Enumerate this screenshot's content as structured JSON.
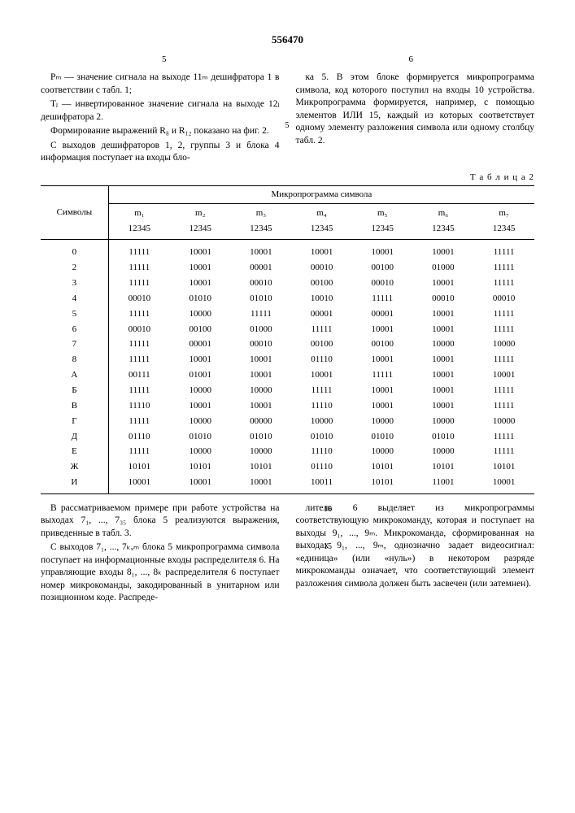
{
  "doc_number": "556470",
  "page_left": "5",
  "page_right": "6",
  "body_top_left": [
    "Рₘ — значение сигнала на выходе 11ₘ дешифратора 1 в соответствии с табл. 1;",
    "Tⱼ — инвертированное значение сигнала на выходе 12ⱼ дешифратора 2.",
    "Формирование выражений R₈ и R₁₂ показано на фиг. 2.",
    "С выходов дешифраторов 1, 2, группы 3 и блока 4 информация поступает на входы бло-"
  ],
  "body_top_right": [
    "ка 5. В этом блоке формируется микропрограмма символа, код которого поступил на входы 10 устройства. Микропрограмма формируется, например, с помощью элементов ИЛИ 15, каждый из которых соответствует одному элементу разложения символа или одному столбцу табл. 2."
  ],
  "line_marker_top": "5",
  "table_label": "Т а б л и ц а   2",
  "table": {
    "super_header": "Микропрограмма символа",
    "sym_header": "Символы",
    "col_headers": [
      "m₁",
      "m₂",
      "m₃",
      "m₄",
      "m₅",
      "m₆",
      "m₇"
    ],
    "col_sub": [
      "12345",
      "12345",
      "12345",
      "12345",
      "12345",
      "12345",
      "12345"
    ],
    "rows": [
      [
        "0",
        "11111",
        "10001",
        "10001",
        "10001",
        "10001",
        "10001",
        "11111"
      ],
      [
        "2",
        "11111",
        "10001",
        "00001",
        "00010",
        "00100",
        "01000",
        "11111"
      ],
      [
        "3",
        "11111",
        "10001",
        "00010",
        "00100",
        "00010",
        "10001",
        "11111"
      ],
      [
        "4",
        "00010",
        "01010",
        "01010",
        "10010",
        "11111",
        "00010",
        "00010"
      ],
      [
        "5",
        "11111",
        "10000",
        "11111",
        "00001",
        "00001",
        "10001",
        "11111"
      ],
      [
        "6",
        "00010",
        "00100",
        "01000",
        "11111",
        "10001",
        "10001",
        "11111"
      ],
      [
        "7",
        "11111",
        "00001",
        "00010",
        "00100",
        "00100",
        "10000",
        "10000"
      ],
      [
        "8",
        "11111",
        "10001",
        "10001",
        "01110",
        "10001",
        "10001",
        "11111"
      ],
      [
        "А",
        "00111",
        "01001",
        "10001",
        "10001",
        "11111",
        "10001",
        "10001"
      ],
      [
        "Б",
        "11111",
        "10000",
        "10000",
        "11111",
        "10001",
        "10001",
        "11111"
      ],
      [
        "В",
        "11110",
        "10001",
        "10001",
        "11110",
        "10001",
        "10001",
        "11111"
      ],
      [
        "Г",
        "11111",
        "10000",
        "00000",
        "10000",
        "10000",
        "10000",
        "10000"
      ],
      [
        "Д",
        "01110",
        "01010",
        "01010",
        "01010",
        "01010",
        "01010",
        "11111"
      ],
      [
        "Е",
        "11111",
        "10000",
        "10000",
        "11110",
        "10000",
        "10000",
        "11111"
      ],
      [
        "Ж",
        "10101",
        "10101",
        "10101",
        "01110",
        "10101",
        "10101",
        "10101"
      ],
      [
        "И",
        "10001",
        "10001",
        "10001",
        "10011",
        "10101",
        "11001",
        "10001"
      ]
    ]
  },
  "body_bottom_left": [
    "В рассматриваемом примере при работе устройства на выходах 7₁, ..., 7₃₅ блока 5 реализуются выражения, приведенные в табл. 3.",
    "С выходов 7₁, ..., 7ₖₓₘ блока 5 микропрограмма символа поступает на информационные входы распределителя 6. На управляющие входы 8₁, ..., 8ₖ распределителя 6 поступает номер микрокоманды, закодированный в унитарном или позиционном коде. Распреде-"
  ],
  "body_bottom_right": [
    "литель 6 выделяет из микропрограммы соответствующую микрокоманду, которая и поступает на выходы 9₁, ..., 9ₘ. Микрокоманда, сформированная на выходах 9₁, ..., 9ₘ, однозначно задает видеосигнал: «единица» (или «нуль») в некотором разряде микрокоманды означает, что соответствующий элемент разложения символа должен быть засвечен (или затемнен)."
  ],
  "line_marker_bottom_1": "10",
  "line_marker_bottom_2": "15",
  "colors": {
    "text": "#000000",
    "background": "#ffffff",
    "border": "#000000"
  },
  "fonts": {
    "body": "Times New Roman, serif",
    "body_size": 12,
    "table_size": 11
  }
}
